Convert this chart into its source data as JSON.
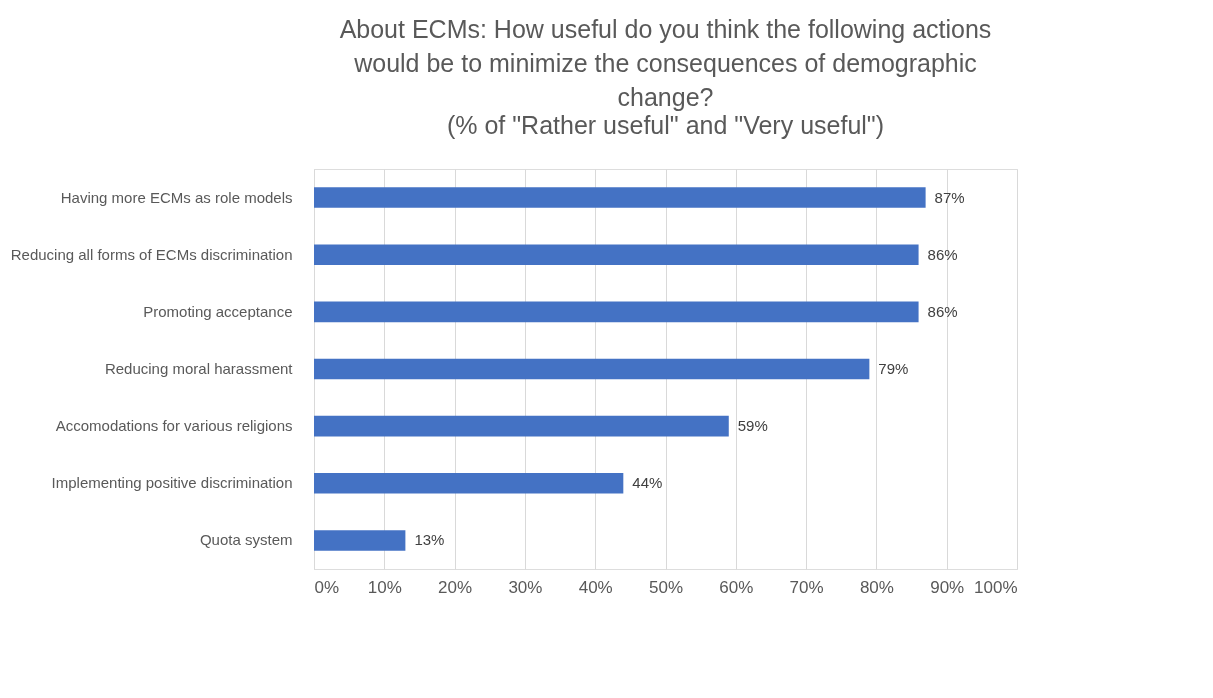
{
  "chart_data": {
    "type": "bar",
    "orientation": "horizontal",
    "title": "About ECMs: How useful do you think the following actions would be to minimize the consequences of demographic change?",
    "subtitle": "(% of \"Rather useful\" and \"Very useful\")",
    "categories": [
      "Having more ECMs as role models",
      "Reducing all forms of ECMs discrimination",
      "Promoting acceptance",
      "Reducing moral harassment",
      "Accomodations for various religions",
      "Implementing positive discrimination",
      "Quota system"
    ],
    "values": [
      87,
      86,
      86,
      79,
      59,
      44,
      13
    ],
    "value_labels": [
      "87%",
      "86%",
      "86%",
      "79%",
      "59%",
      "44%",
      "13%"
    ],
    "color": "#4472c4",
    "xlim": [
      0,
      100
    ],
    "xticks": [
      {
        "value": 0,
        "label": "0%"
      },
      {
        "value": 10,
        "label": "10%"
      },
      {
        "value": 20,
        "label": "20%"
      },
      {
        "value": 30,
        "label": "30%"
      },
      {
        "value": 40,
        "label": "40%"
      },
      {
        "value": 50,
        "label": "50%"
      },
      {
        "value": 60,
        "label": "60%"
      },
      {
        "value": 70,
        "label": "70%"
      },
      {
        "value": 80,
        "label": "80%"
      },
      {
        "value": 90,
        "label": "90%"
      },
      {
        "value": 100,
        "label": "100%"
      }
    ],
    "grid": "x"
  }
}
